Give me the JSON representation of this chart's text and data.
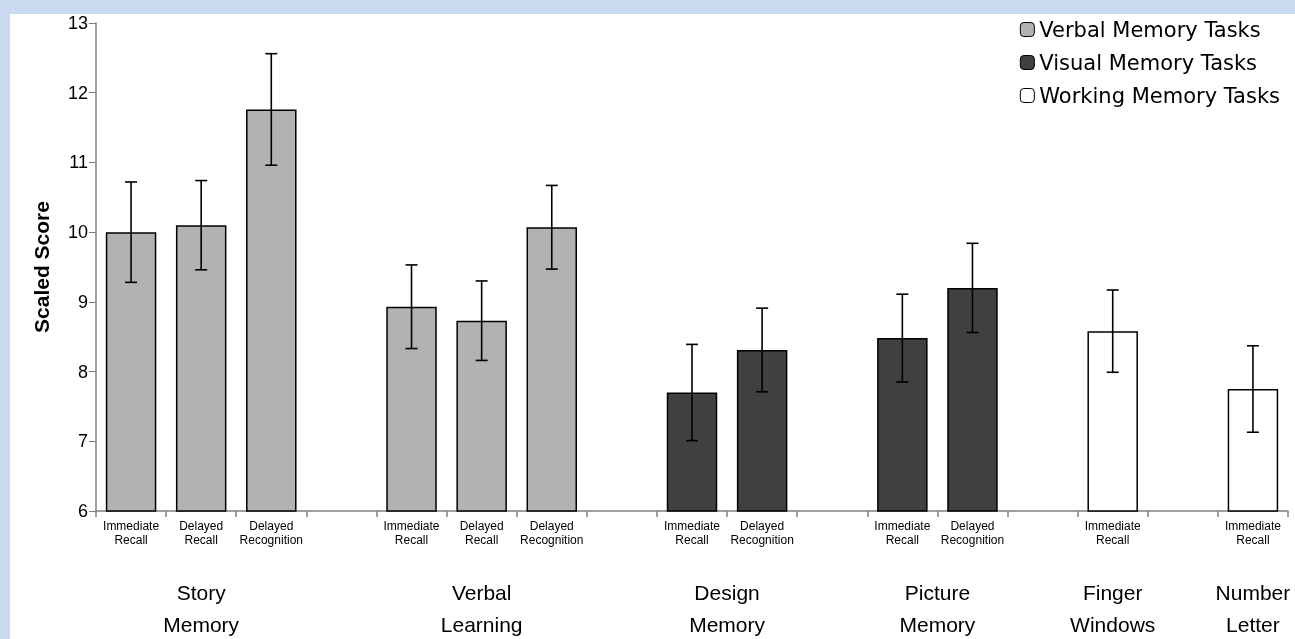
{
  "chart_data": {
    "type": "bar",
    "categories": [
      "Immediate Recall",
      "Delayed Recall",
      "Delayed Recognition",
      null,
      "Immediate Recall",
      "Delayed Recall",
      "Delayed Recognition",
      null,
      "Immediate Recall",
      "Delayed Recognition",
      null,
      "Immediate Recall",
      "Delayed Recognition",
      null,
      "Immediate Recall",
      null,
      "Immediate Recall"
    ],
    "series": [
      {
        "name": "Verbal Memory Tasks",
        "color": "#b2b2b2",
        "values": [
          10.0,
          10.1,
          11.76,
          null,
          8.93,
          8.73,
          10.07,
          null,
          null,
          null,
          null,
          null,
          null,
          null,
          null,
          null,
          null
        ],
        "errors": [
          0.72,
          0.64,
          0.8,
          null,
          0.6,
          0.57,
          0.6,
          null,
          null,
          null,
          null,
          null,
          null,
          null,
          null,
          null,
          null
        ]
      },
      {
        "name": "Visual Memory Tasks",
        "color": "#404040",
        "values": [
          null,
          null,
          null,
          null,
          null,
          null,
          null,
          null,
          7.7,
          8.31,
          null,
          8.48,
          9.2,
          null,
          null,
          null,
          null
        ],
        "errors": [
          null,
          null,
          null,
          null,
          null,
          null,
          null,
          null,
          0.69,
          0.6,
          null,
          0.63,
          0.64,
          null,
          null,
          null,
          null
        ]
      },
      {
        "name": "Working Memory Tasks",
        "color": "#ffffff",
        "values": [
          null,
          null,
          null,
          null,
          null,
          null,
          null,
          null,
          null,
          null,
          null,
          null,
          null,
          null,
          8.58,
          null,
          7.75
        ],
        "errors": [
          null,
          null,
          null,
          null,
          null,
          null,
          null,
          null,
          null,
          null,
          null,
          null,
          null,
          null,
          0.59,
          null,
          0.62
        ]
      }
    ],
    "ylabel": "Scaled Score",
    "ylim": [
      6,
      13
    ],
    "yticks": [
      6,
      7,
      8,
      9,
      10,
      11,
      12,
      13
    ],
    "annotations": [
      "Story Memory",
      "Verbal Learning",
      "Design Memory",
      "Picture Memory",
      "Finger Windows",
      "Number Letter"
    ],
    "legend": "top right",
    "grid": false
  }
}
